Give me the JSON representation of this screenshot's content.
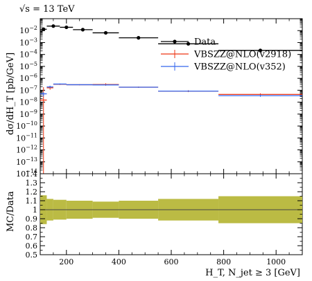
{
  "energy_label": "√s = 13 TeV",
  "chart_data": [
    {
      "type": "scatter",
      "panel": "main",
      "title": "",
      "xlabel": "H_T, N_jet ≥ 3 [GeV]",
      "ylabel": "dσ/dH_T [pb/GeV]",
      "xlim": [
        100,
        1100
      ],
      "ylim": [
        1e-14,
        0.1
      ],
      "yscale": "log",
      "x_ticks": [
        200,
        400,
        600,
        800,
        1000
      ],
      "y_ticks": [
        {
          "value": 1e-14,
          "label": "10^-14"
        },
        {
          "value": 1e-13,
          "label": "10^-13"
        },
        {
          "value": 1e-12,
          "label": "10^-12"
        },
        {
          "value": 1e-11,
          "label": "10^-11"
        },
        {
          "value": 1e-10,
          "label": "10^-10"
        },
        {
          "value": 1e-09,
          "label": "10^-9"
        },
        {
          "value": 1e-08,
          "label": "10^-8"
        },
        {
          "value": 1e-07,
          "label": "10^-7"
        },
        {
          "value": 1e-06,
          "label": "10^-6"
        },
        {
          "value": 1e-05,
          "label": "10^-5"
        },
        {
          "value": 0.0001,
          "label": "10^-4"
        },
        {
          "value": 0.001,
          "label": "10^-3"
        },
        {
          "value": 0.01,
          "label": "10^-2"
        }
      ],
      "legend_position": "top-right",
      "series": [
        {
          "name": "Data",
          "color": "#000000",
          "style": "points",
          "bins": [
            {
              "xlo": 100,
              "xhi": 125,
              "y": 0.013
            },
            {
              "xlo": 125,
              "xhi": 175,
              "y": 0.024
            },
            {
              "xlo": 175,
              "xhi": 225,
              "y": 0.019
            },
            {
              "xlo": 225,
              "xhi": 300,
              "y": 0.012
            },
            {
              "xlo": 300,
              "xhi": 400,
              "y": 0.0065
            },
            {
              "xlo": 400,
              "xhi": 550,
              "y": 0.0025
            },
            {
              "xlo": 550,
              "xhi": 780,
              "y": 0.00078
            },
            {
              "xlo": 780,
              "xhi": 1100,
              "y": 0.00022
            }
          ]
        },
        {
          "name": "VBSZZ@NLO(v2918)",
          "color": "#ee3311",
          "style": "hist",
          "bins": [
            {
              "xlo": 100,
              "xhi": 125,
              "y": 1.5e-08,
              "ylo": 1e-14,
              "yhi": 1.8e-07
            },
            {
              "xlo": 125,
              "xhi": 150,
              "y": 1.6e-07,
              "ylo": 1.1e-07,
              "yhi": 2.3e-07
            },
            {
              "xlo": 150,
              "xhi": 200,
              "y": 3.2e-07,
              "ylo": 2.8e-07,
              "yhi": 3.6e-07
            },
            {
              "xlo": 200,
              "xhi": 300,
              "y": 2.9e-07,
              "ylo": 2.6e-07,
              "yhi": 3.2e-07
            },
            {
              "xlo": 300,
              "xhi": 400,
              "y": 3e-07,
              "ylo": 2.4e-07,
              "yhi": 3.8e-07
            },
            {
              "xlo": 400,
              "xhi": 550,
              "y": 1.8e-07,
              "ylo": 1.6e-07,
              "yhi": 2e-07
            },
            {
              "xlo": 550,
              "xhi": 780,
              "y": 8.5e-08,
              "ylo": 7e-08,
              "yhi": 1e-07
            },
            {
              "xlo": 780,
              "xhi": 1100,
              "y": 4.5e-08,
              "ylo": 3.5e-08,
              "yhi": 5.5e-08
            }
          ]
        },
        {
          "name": "VBSZZ@NLO(v352)",
          "color": "#3366ee",
          "style": "hist",
          "bins": [
            {
              "xlo": 100,
              "xhi": 125,
              "y": 5e-08,
              "ylo": 3e-08,
              "yhi": 7e-08
            },
            {
              "xlo": 125,
              "xhi": 150,
              "y": 1.9e-07,
              "ylo": 1.5e-07,
              "yhi": 2.4e-07
            },
            {
              "xlo": 150,
              "xhi": 200,
              "y": 3.3e-07,
              "ylo": 3e-07,
              "yhi": 3.6e-07
            },
            {
              "xlo": 200,
              "xhi": 300,
              "y": 2.9e-07,
              "ylo": 2.7e-07,
              "yhi": 3.1e-07
            },
            {
              "xlo": 300,
              "xhi": 400,
              "y": 2.8e-07,
              "ylo": 2.5e-07,
              "yhi": 3.1e-07
            },
            {
              "xlo": 400,
              "xhi": 550,
              "y": 1.8e-07,
              "ylo": 1.65e-07,
              "yhi": 1.95e-07
            },
            {
              "xlo": 550,
              "xhi": 780,
              "y": 8.5e-08,
              "ylo": 7.5e-08,
              "yhi": 9.5e-08
            },
            {
              "xlo": 780,
              "xhi": 1100,
              "y": 3.5e-08,
              "ylo": 2.8e-08,
              "yhi": 4.2e-08
            }
          ]
        }
      ]
    },
    {
      "type": "area",
      "panel": "ratio",
      "title": "",
      "xlabel": "H_T, N_jet ≥ 3 [GeV]",
      "ylabel": "MC/Data",
      "xlim": [
        100,
        1100
      ],
      "ylim": [
        0.5,
        1.4
      ],
      "x_ticks": [
        200,
        400,
        600,
        800,
        1000
      ],
      "y_ticks": [
        0.5,
        0.6,
        0.7,
        0.8,
        0.9,
        1.0,
        1.1,
        1.2,
        1.3,
        1.4
      ],
      "y_tick_labels": [
        "0.5",
        "0.6",
        "0.7",
        "0.8",
        "0.9",
        "1",
        "1.1",
        "1.2",
        "1.3",
        "1.4"
      ],
      "band_color": "#bbbb44",
      "band": [
        {
          "xlo": 100,
          "xhi": 125,
          "lo": 0.84,
          "hi": 1.16
        },
        {
          "xlo": 125,
          "xhi": 150,
          "lo": 0.88,
          "hi": 1.12
        },
        {
          "xlo": 150,
          "xhi": 200,
          "lo": 0.89,
          "hi": 1.11
        },
        {
          "xlo": 200,
          "xhi": 300,
          "lo": 0.9,
          "hi": 1.1
        },
        {
          "xlo": 300,
          "xhi": 400,
          "lo": 0.91,
          "hi": 1.09
        },
        {
          "xlo": 400,
          "xhi": 550,
          "lo": 0.9,
          "hi": 1.1
        },
        {
          "xlo": 550,
          "xhi": 780,
          "lo": 0.88,
          "hi": 1.12
        },
        {
          "xlo": 780,
          "xhi": 1100,
          "lo": 0.85,
          "hi": 1.15
        }
      ]
    }
  ]
}
